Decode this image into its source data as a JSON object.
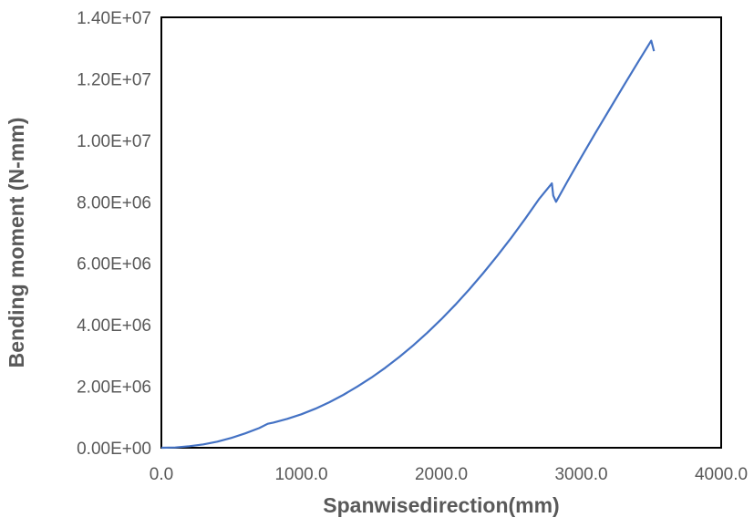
{
  "chart_data": {
    "type": "line",
    "title": "",
    "xlabel": "Spanwisedirection(mm)",
    "ylabel": "Bending moment (N-mm)",
    "xlim": [
      0,
      4000
    ],
    "ylim": [
      0,
      14000000
    ],
    "x_ticks": [
      "0.0",
      "1000.0",
      "2000.0",
      "3000.0",
      "4000.0"
    ],
    "y_ticks": [
      "0.00E+00",
      "2.00E+06",
      "4.00E+06",
      "6.00E+06",
      "8.00E+06",
      "1.00E+07",
      "1.20E+07",
      "1.40E+07"
    ],
    "grid": false,
    "legend": "none",
    "series_color": "#4472C4",
    "series": [
      {
        "x": [
          0,
          100,
          200,
          300,
          400,
          500,
          600,
          700,
          760,
          800,
          900,
          1000,
          1100,
          1200,
          1300,
          1400,
          1500,
          1600,
          1700,
          1800,
          1900,
          2000,
          2100,
          2200,
          2300,
          2400,
          2500,
          2600,
          2700,
          2790,
          2800,
          2820,
          2900,
          3000,
          3100,
          3200,
          3300,
          3400,
          3500,
          3520
        ],
        "y": [
          0,
          10000,
          50000,
          110000,
          200000,
          320000,
          470000,
          640000,
          780000,
          820000,
          940000,
          1090000,
          1270000,
          1480000,
          1720000,
          1990000,
          2280000,
          2600000,
          2950000,
          3330000,
          3740000,
          4180000,
          4650000,
          5150000,
          5680000,
          6240000,
          6830000,
          7450000,
          8100000,
          8600000,
          8200000,
          8000000,
          8650000,
          9450000,
          10230000,
          10990000,
          11750000,
          12500000,
          13240000,
          12900000
        ]
      }
    ]
  }
}
